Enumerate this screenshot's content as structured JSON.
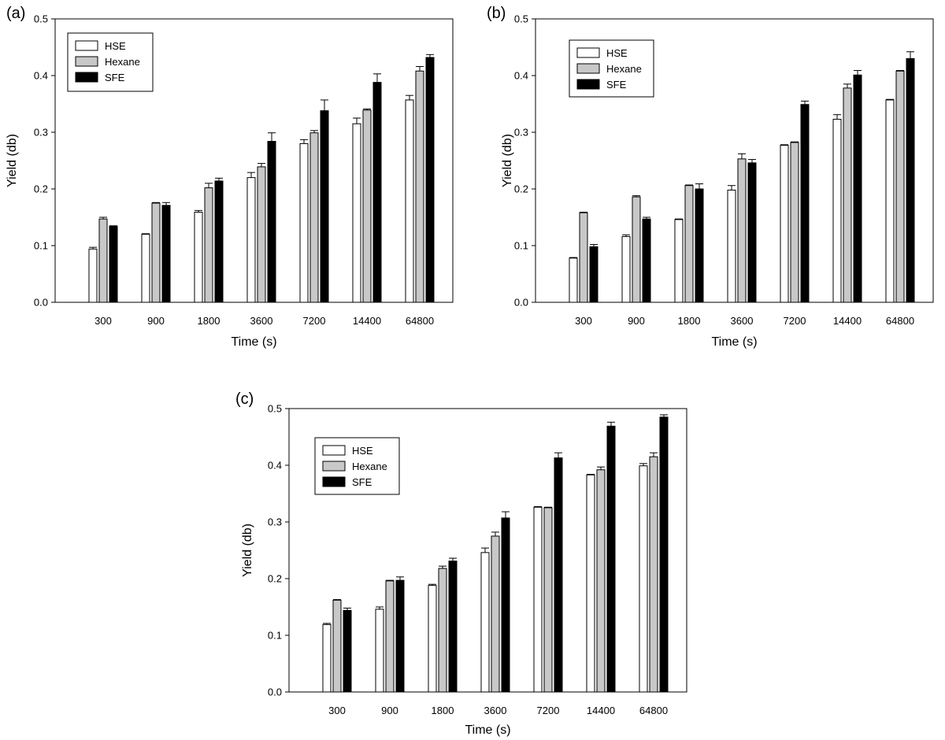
{
  "legend_labels": {
    "hse": "HSE",
    "hexane": "Hexane",
    "sfe": "SFE"
  },
  "colors": {
    "HSE": "#ffffff",
    "Hexane": "#c8c8c8",
    "SFE": "#000000",
    "outline": "#000000"
  },
  "chart_data": [
    {
      "type": "bar",
      "panel_label": "(a)",
      "xlabel": "Time (s)",
      "ylabel": "Yield (db)",
      "categories": [
        "300",
        "900",
        "1800",
        "3600",
        "7200",
        "14400",
        "64800"
      ],
      "ylim": [
        0,
        0.5
      ],
      "yticks": [
        "0.0",
        "0.1",
        "0.2",
        "0.3",
        "0.4",
        "0.5"
      ],
      "grid": false,
      "legend_position": "top-left",
      "series": [
        {
          "name": "HSE",
          "values": [
            0.094,
            0.12,
            0.159,
            0.22,
            0.28,
            0.315,
            0.357
          ],
          "errors": [
            0.003,
            0.001,
            0.003,
            0.009,
            0.007,
            0.01,
            0.008
          ]
        },
        {
          "name": "Hexane",
          "values": [
            0.147,
            0.175,
            0.202,
            0.239,
            0.299,
            0.339,
            0.408
          ],
          "errors": [
            0.003,
            0.001,
            0.008,
            0.006,
            0.004,
            0.002,
            0.008
          ]
        },
        {
          "name": "SFE",
          "values": [
            0.134,
            0.171,
            0.214,
            0.284,
            0.338,
            0.388,
            0.432
          ],
          "errors": [
            0.001,
            0.005,
            0.005,
            0.015,
            0.019,
            0.015,
            0.005
          ]
        }
      ]
    },
    {
      "type": "bar",
      "panel_label": "(b)",
      "xlabel": "Time (s)",
      "ylabel": "Yield (db)",
      "categories": [
        "300",
        "900",
        "1800",
        "3600",
        "7200",
        "14400",
        "64800"
      ],
      "ylim": [
        0,
        0.5
      ],
      "yticks": [
        "0.0",
        "0.1",
        "0.2",
        "0.3",
        "0.4",
        "0.5"
      ],
      "grid": false,
      "legend_position": "top-left",
      "series": [
        {
          "name": "HSE",
          "values": [
            0.078,
            0.116,
            0.146,
            0.198,
            0.277,
            0.323,
            0.357
          ],
          "errors": [
            0.001,
            0.003,
            0.001,
            0.008,
            0.001,
            0.008,
            0.001
          ]
        },
        {
          "name": "Hexane",
          "values": [
            0.158,
            0.186,
            0.206,
            0.253,
            0.282,
            0.378,
            0.408
          ],
          "errors": [
            0.001,
            0.002,
            0.001,
            0.009,
            0.001,
            0.007,
            0.001
          ]
        },
        {
          "name": "SFE",
          "values": [
            0.098,
            0.147,
            0.2,
            0.246,
            0.349,
            0.401,
            0.43
          ],
          "errors": [
            0.004,
            0.003,
            0.009,
            0.006,
            0.006,
            0.008,
            0.012
          ]
        }
      ]
    },
    {
      "type": "bar",
      "panel_label": "(c)",
      "xlabel": "Time (s)",
      "ylabel": "Yield (db)",
      "categories": [
        "300",
        "900",
        "1800",
        "3600",
        "7200",
        "14400",
        "64800"
      ],
      "ylim": [
        0,
        0.5
      ],
      "yticks": [
        "0.0",
        "0.1",
        "0.2",
        "0.3",
        "0.4",
        "0.5"
      ],
      "grid": false,
      "legend_position": "top-left",
      "series": [
        {
          "name": "HSE",
          "values": [
            0.119,
            0.146,
            0.188,
            0.246,
            0.326,
            0.383,
            0.399
          ],
          "errors": [
            0.002,
            0.004,
            0.002,
            0.008,
            0.001,
            0.001,
            0.004
          ]
        },
        {
          "name": "Hexane",
          "values": [
            0.162,
            0.196,
            0.218,
            0.275,
            0.325,
            0.392,
            0.415
          ],
          "errors": [
            0.001,
            0.001,
            0.004,
            0.007,
            0.001,
            0.005,
            0.007
          ]
        },
        {
          "name": "SFE",
          "values": [
            0.144,
            0.197,
            0.231,
            0.307,
            0.413,
            0.469,
            0.485
          ],
          "errors": [
            0.004,
            0.006,
            0.005,
            0.011,
            0.009,
            0.007,
            0.004
          ]
        }
      ]
    }
  ]
}
